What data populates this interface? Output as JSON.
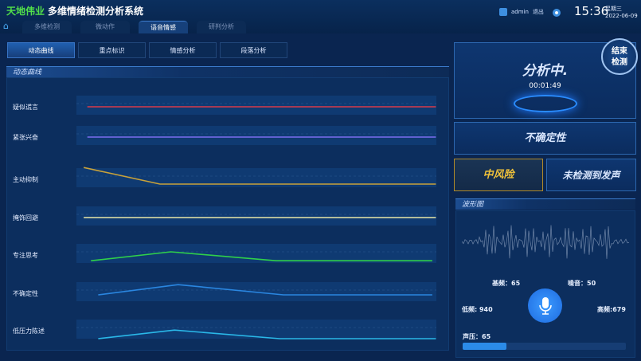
{
  "header": {
    "brand": "天地伟业",
    "title": "多维情绪检测分析系统",
    "user": "admin",
    "logout": "退出",
    "time": "15:36",
    "weekday": "星期三",
    "date": "2022-06-09"
  },
  "nav_tabs": [
    {
      "label": "多维检测"
    },
    {
      "label": "微动作"
    },
    {
      "label": "语音情感",
      "active": true
    },
    {
      "label": "研判分析"
    }
  ],
  "sub_tabs": [
    {
      "label": "动态曲线",
      "active": true
    },
    {
      "label": "重点标识"
    },
    {
      "label": "情感分析"
    },
    {
      "label": "段落分析"
    }
  ],
  "dynamic_curve": {
    "title": "动态曲线",
    "series": [
      {
        "label": "疑似谎言",
        "color": "#d83a4a",
        "points": [
          [
            3,
            50
          ],
          [
            99,
            50
          ]
        ]
      },
      {
        "label": "紧张兴奋",
        "color": "#7b6df0",
        "points": [
          [
            3,
            50
          ],
          [
            99,
            50
          ]
        ]
      },
      {
        "label": "主动抑制",
        "color": "#c9a23a",
        "points": [
          [
            2,
            87
          ],
          [
            23,
            35
          ],
          [
            99,
            35
          ]
        ]
      },
      {
        "label": "掩饰回避",
        "color": "#e8e8a8",
        "points": [
          [
            2,
            50
          ],
          [
            99,
            50
          ]
        ]
      },
      {
        "label": "专注思考",
        "color": "#2fd04a",
        "points": [
          [
            4,
            32
          ],
          [
            26,
            60
          ],
          [
            55,
            32
          ],
          [
            98,
            32
          ]
        ]
      },
      {
        "label": "不确定性",
        "color": "#2a86e0",
        "points": [
          [
            6,
            45
          ],
          [
            28,
            77
          ],
          [
            57,
            45
          ],
          [
            98,
            45
          ]
        ]
      },
      {
        "label": "低压力陈述",
        "color": "#2ab8e8",
        "points": [
          [
            6,
            25
          ],
          [
            27,
            52
          ],
          [
            56,
            25
          ],
          [
            99,
            25
          ]
        ]
      }
    ]
  },
  "status": {
    "state": "分析中.",
    "elapsed": "00:01:49",
    "end_button": [
      "结束",
      "检测"
    ],
    "emotion": "不确定性",
    "risk": "中风险",
    "voice": "未检测到发声",
    "risk_color": "#f0c23a"
  },
  "waveform": {
    "title": "波形图"
  },
  "metrics": {
    "fundamental": "基频：65",
    "noise": "噪音：50",
    "low": "低频: 940",
    "high": "高频:679",
    "pressure": "声压：65",
    "pressure_percent": 27
  }
}
